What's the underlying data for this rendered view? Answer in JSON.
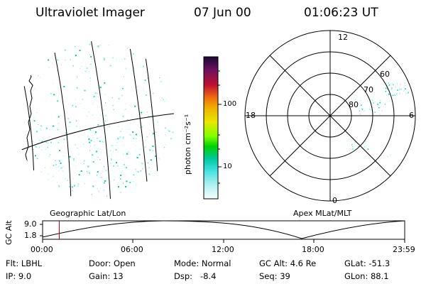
{
  "header": {
    "title": "Ultraviolet Imager",
    "date": "07 Jun 00",
    "time": "01:06:23 UT"
  },
  "geo_panel": {
    "label": "Geographic Lat/Lon"
  },
  "polar_panel": {
    "label": "Apex MLat/MLT",
    "mlt_labels": {
      "top": "12",
      "left": "18",
      "right": "6",
      "bottom": "0"
    },
    "lat_labels": [
      "60",
      "70",
      "80"
    ]
  },
  "colorbar": {
    "unit": "photon cm⁻²s⁻¹",
    "ticks": [
      "100",
      "10"
    ],
    "scale": "log",
    "colors": [
      "#2a0a40",
      "#b01040",
      "#e81818",
      "#f07010",
      "#f0b000",
      "#e8e800",
      "#80ff00",
      "#00d000",
      "#00c8a0",
      "#40e0e0",
      "#b0f0f0",
      "#e8ffff"
    ]
  },
  "timeline": {
    "ylabel": "GC Alt",
    "yticks": [
      "9.0",
      "1.8"
    ],
    "xticks": [
      "00:00",
      "06:00",
      "12:00",
      "18:00",
      "23:59"
    ],
    "marker_time_hours": 1.106,
    "marker_color": "#cc0000"
  },
  "params": {
    "flt": "Flt: LBHL",
    "ip": "IP:  9.0",
    "door": "Door: Open",
    "gain": "Gain: 13",
    "mode": "Mode: Normal",
    "dsp": "Dsp:   -8.4",
    "gcalt": "GC Alt: 4.6 Re",
    "seq": "Seq: 39",
    "glat": "GLat: -51.3",
    "glon": "GLon: 88.1"
  }
}
